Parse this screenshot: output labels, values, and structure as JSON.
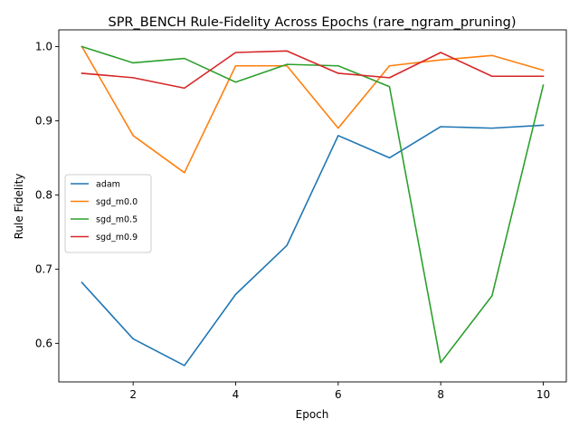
{
  "chart_data": {
    "type": "line",
    "title": "SPR_BENCH Rule-Fidelity Across Epochs (rare_ngram_pruning)",
    "xlabel": "Epoch",
    "ylabel": "Rule Fidelity",
    "xlim": [
      0.55,
      10.45
    ],
    "ylim": [
      0.548,
      1.0225
    ],
    "xticks": [
      2,
      4,
      6,
      8,
      10
    ],
    "yticks": [
      0.6,
      0.7,
      0.8,
      0.9,
      1.0
    ],
    "ytick_labels": [
      "0.6",
      "0.7",
      "0.8",
      "0.9",
      "1.0"
    ],
    "grid": false,
    "legend_position": "center-left",
    "x": [
      1,
      2,
      3,
      4,
      5,
      6,
      7,
      8,
      9,
      10
    ],
    "series": [
      {
        "name": "adam",
        "color": "#1f77b4",
        "values": [
          0.682,
          0.606,
          0.57,
          0.666,
          0.732,
          0.88,
          0.85,
          0.892,
          0.89,
          0.894
        ]
      },
      {
        "name": "sgd_m0.0",
        "color": "#ff7f0e",
        "values": [
          1.0,
          0.88,
          0.83,
          0.974,
          0.974,
          0.89,
          0.974,
          0.982,
          0.988,
          0.968
        ]
      },
      {
        "name": "sgd_m0.5",
        "color": "#2ca02c",
        "values": [
          1.0,
          0.978,
          0.984,
          0.952,
          0.976,
          0.974,
          0.946,
          0.574,
          0.664,
          0.948
        ]
      },
      {
        "name": "sgd_m0.9",
        "color": "#d62728",
        "values": [
          0.964,
          0.958,
          0.944,
          0.992,
          0.994,
          0.964,
          0.958,
          0.992,
          0.96,
          0.96
        ]
      }
    ]
  }
}
